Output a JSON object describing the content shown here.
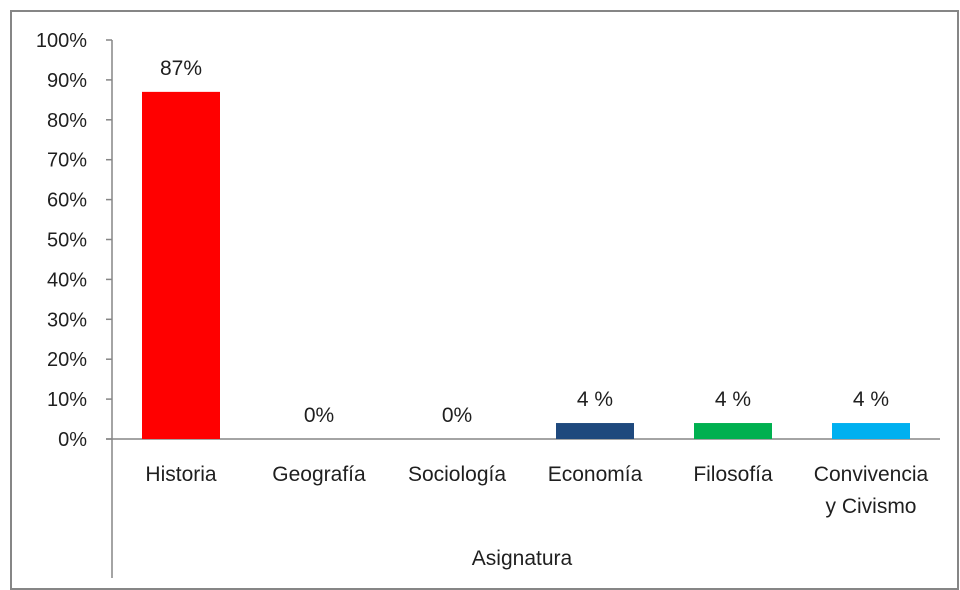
{
  "chart_data": {
    "type": "bar",
    "title": "",
    "xlabel": "Asignatura",
    "ylabel": "",
    "ylim": [
      0,
      100
    ],
    "yticks": [
      "0%",
      "10%",
      "20%",
      "30%",
      "40%",
      "50%",
      "60%",
      "70%",
      "80%",
      "90%",
      "100%"
    ],
    "grid": false,
    "legend": "none",
    "categories": [
      {
        "label_lines": [
          "Historia"
        ]
      },
      {
        "label_lines": [
          "Geografía"
        ]
      },
      {
        "label_lines": [
          "Sociología"
        ]
      },
      {
        "label_lines": [
          "Economía"
        ]
      },
      {
        "label_lines": [
          "Filosofía"
        ]
      },
      {
        "label_lines": [
          "Convivencia",
          "y Civismo"
        ]
      }
    ],
    "values": [
      87,
      0,
      0,
      4,
      4,
      4
    ],
    "data_labels": [
      "87%",
      "0%",
      "0%",
      "4 %",
      "4 %",
      "4 %"
    ],
    "colors": [
      "#ff0000",
      "#c0504d",
      "#9bbb59",
      "#1f497d",
      "#00b050",
      "#00b0f0"
    ]
  }
}
